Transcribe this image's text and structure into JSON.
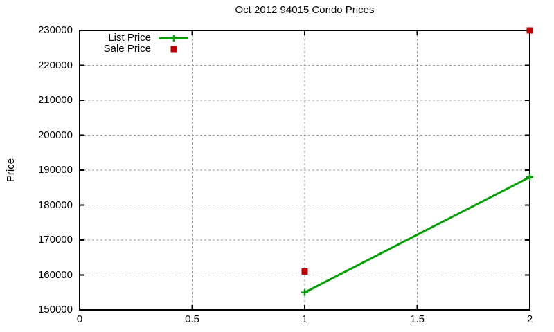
{
  "chart_data": {
    "type": "line",
    "title": "Oct 2012 94015 Condo Prices",
    "xlabel": "",
    "ylabel": "Price",
    "xlim": [
      0,
      2
    ],
    "ylim": [
      150000,
      230000
    ],
    "xticks": [
      0,
      0.5,
      1,
      1.5,
      2
    ],
    "xtick_labels": [
      "0",
      "0.5",
      "1",
      "1.5",
      "2"
    ],
    "yticks": [
      150000,
      160000,
      170000,
      180000,
      190000,
      200000,
      210000,
      220000,
      230000
    ],
    "ytick_labels": [
      "150000",
      "160000",
      "170000",
      "180000",
      "190000",
      "200000",
      "210000",
      "220000",
      "230000"
    ],
    "grid": true,
    "legend_position": "top-left",
    "series": [
      {
        "name": "List Price",
        "type": "line",
        "line": true,
        "marker": "plus",
        "color": "#00a000",
        "x": [
          1,
          2
        ],
        "y": [
          155000,
          188000
        ]
      },
      {
        "name": "Sale Price",
        "type": "scatter",
        "line": false,
        "marker": "square",
        "color": "#c00000",
        "x": [
          1,
          2
        ],
        "y": [
          161000,
          230000
        ]
      }
    ],
    "colors": {
      "grid": "#9a9a9a",
      "axis": "#000000",
      "text": "#000000",
      "background": "#ffffff"
    }
  }
}
